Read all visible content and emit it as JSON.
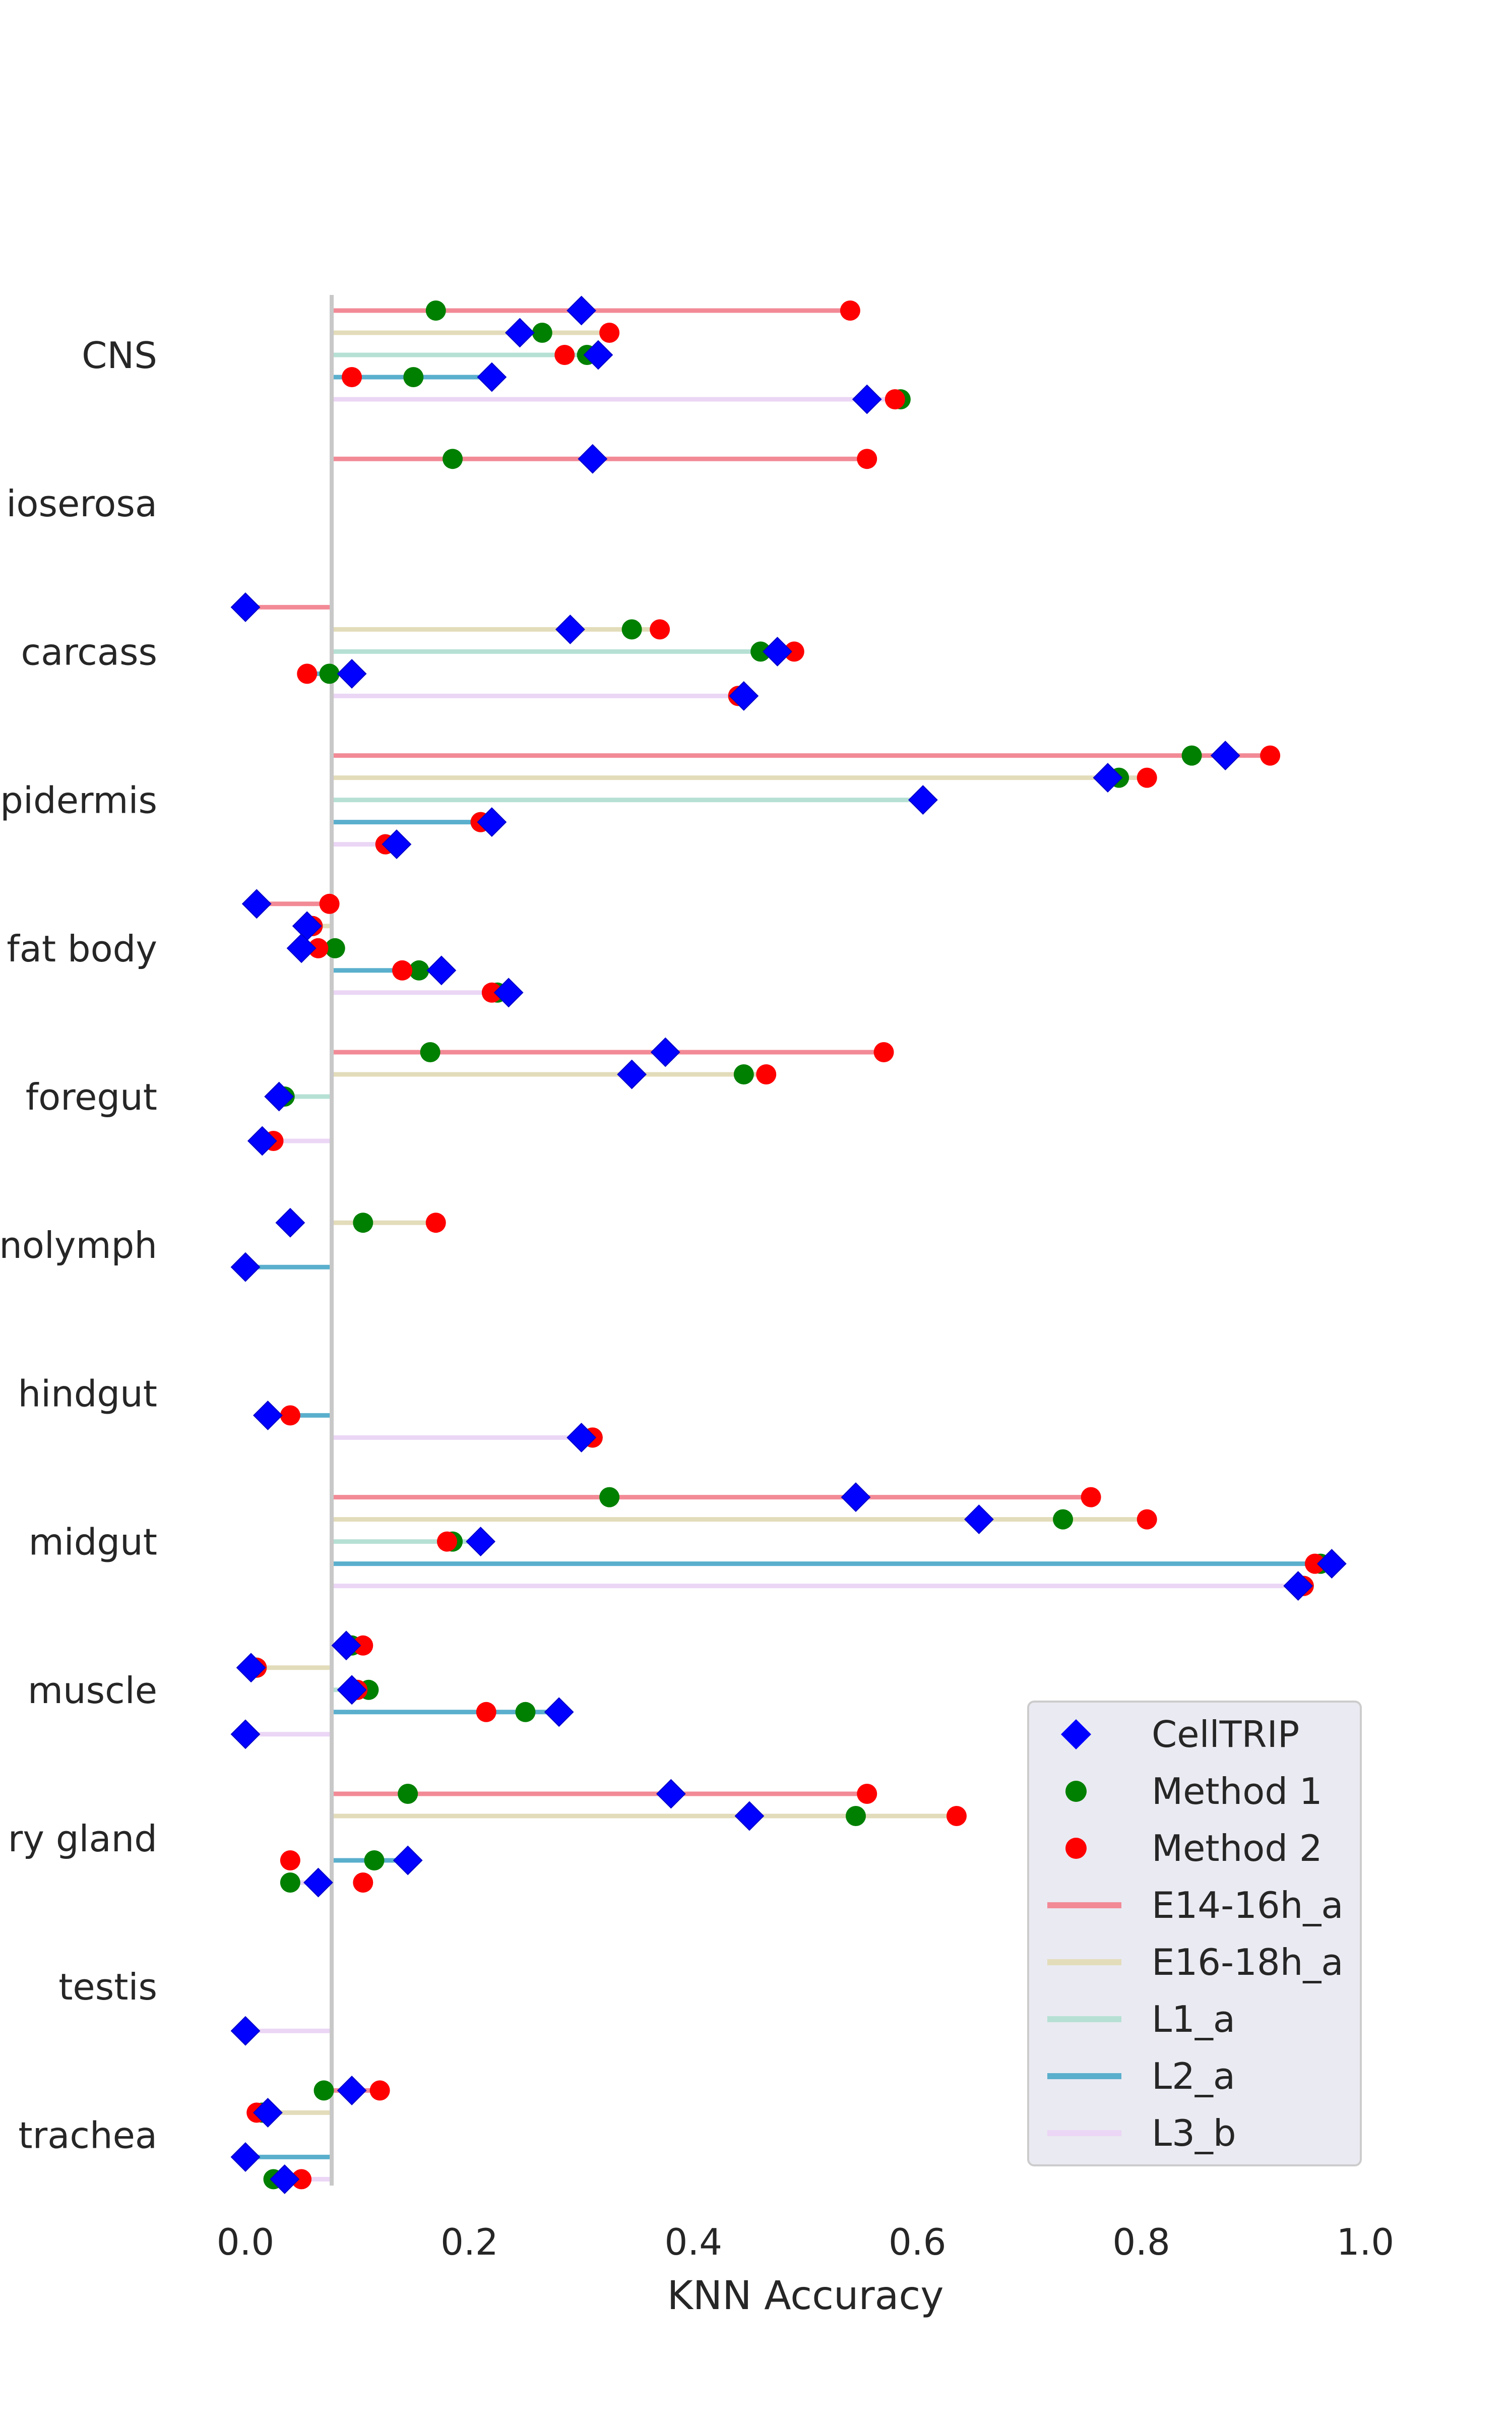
{
  "chart_data": {
    "type": "scatter",
    "xlabel": "KNN Accuracy",
    "xlim": [
      -0.02,
      1.03
    ],
    "x_ticks": [
      "0.0",
      "0.2",
      "0.4",
      "0.6",
      "0.8",
      "1.0"
    ],
    "x_tick_values": [
      0.0,
      0.2,
      0.4,
      0.6,
      0.8,
      1.0
    ],
    "baseline_x": 0.077,
    "grid": false,
    "legend_position": "lower-right",
    "categories": [
      "CNS",
      "amnioserosa",
      "carcass",
      "epidermis",
      "fat body",
      "foregut",
      "hemolymph",
      "hindgut",
      "midgut",
      "muscle",
      "salivary gland",
      "testis",
      "trachea"
    ],
    "category_labels": [
      "CNS",
      "ioserosa",
      "carcass",
      "pidermis",
      "fat body",
      "foregut",
      "nolymph",
      "hindgut",
      "midgut",
      "muscle",
      "ry gland",
      "testis",
      "trachea"
    ],
    "groups": [
      {
        "name": "E14-16h_a",
        "color": "#f28a96"
      },
      {
        "name": "E16-18h_a",
        "color": "#e3dcba"
      },
      {
        "name": "L1_a",
        "color": "#b6e0d4"
      },
      {
        "name": "L2_a",
        "color": "#5aafcd"
      },
      {
        "name": "L3_b",
        "color": "#ebd6f5"
      }
    ],
    "methods": [
      {
        "name": "CellTRIP",
        "color": "#0000ff",
        "marker": "diamond"
      },
      {
        "name": "Method 1",
        "color": "#008000",
        "marker": "circle"
      },
      {
        "name": "Method 2",
        "color": "#ff0000",
        "marker": "circle"
      }
    ],
    "points": [
      {
        "category": "CNS",
        "group": "E14-16h_a",
        "CellTRIP": 0.3,
        "Method 1": 0.17,
        "Method 2": 0.54
      },
      {
        "category": "CNS",
        "group": "E16-18h_a",
        "CellTRIP": 0.245,
        "Method 1": 0.265,
        "Method 2": 0.325
      },
      {
        "category": "CNS",
        "group": "L1_a",
        "CellTRIP": 0.315,
        "Method 1": 0.305,
        "Method 2": 0.285
      },
      {
        "category": "CNS",
        "group": "L2_a",
        "CellTRIP": 0.22,
        "Method 1": 0.15,
        "Method 2": 0.095
      },
      {
        "category": "CNS",
        "group": "L3_b",
        "CellTRIP": 0.555,
        "Method 1": 0.585,
        "Method 2": 0.58
      },
      {
        "category": "amnioserosa",
        "group": "E14-16h_a",
        "CellTRIP": 0.31,
        "Method 1": 0.185,
        "Method 2": 0.555
      },
      {
        "category": "carcass",
        "group": "E14-16h_a",
        "CellTRIP": 0.0,
        "Method 1": null,
        "Method 2": null
      },
      {
        "category": "carcass",
        "group": "E16-18h_a",
        "CellTRIP": 0.29,
        "Method 1": 0.345,
        "Method 2": 0.37
      },
      {
        "category": "carcass",
        "group": "L1_a",
        "CellTRIP": 0.475,
        "Method 1": 0.46,
        "Method 2": 0.49
      },
      {
        "category": "carcass",
        "group": "L2_a",
        "CellTRIP": 0.095,
        "Method 1": 0.075,
        "Method 2": 0.055
      },
      {
        "category": "carcass",
        "group": "L3_b",
        "CellTRIP": 0.445,
        "Method 1": 0.44,
        "Method 2": 0.44
      },
      {
        "category": "epidermis",
        "group": "E14-16h_a",
        "CellTRIP": 0.875,
        "Method 1": 0.845,
        "Method 2": 0.915
      },
      {
        "category": "epidermis",
        "group": "E16-18h_a",
        "CellTRIP": 0.77,
        "Method 1": 0.78,
        "Method 2": 0.805
      },
      {
        "category": "epidermis",
        "group": "L1_a",
        "CellTRIP": 0.605,
        "Method 1": null,
        "Method 2": null
      },
      {
        "category": "epidermis",
        "group": "L2_a",
        "CellTRIP": 0.22,
        "Method 1": 0.21,
        "Method 2": 0.21
      },
      {
        "category": "epidermis",
        "group": "L3_b",
        "CellTRIP": 0.135,
        "Method 1": 0.125,
        "Method 2": 0.125
      },
      {
        "category": "fat body",
        "group": "E14-16h_a",
        "CellTRIP": 0.01,
        "Method 1": null,
        "Method 2": 0.075
      },
      {
        "category": "fat body",
        "group": "E16-18h_a",
        "CellTRIP": 0.055,
        "Method 1": 0.06,
        "Method 2": 0.06
      },
      {
        "category": "fat body",
        "group": "L1_a",
        "CellTRIP": 0.05,
        "Method 1": 0.08,
        "Method 2": 0.065
      },
      {
        "category": "fat body",
        "group": "L2_a",
        "CellTRIP": 0.175,
        "Method 1": 0.155,
        "Method 2": 0.14
      },
      {
        "category": "fat body",
        "group": "L3_b",
        "CellTRIP": 0.235,
        "Method 1": 0.225,
        "Method 2": 0.22
      },
      {
        "category": "foregut",
        "group": "E14-16h_a",
        "CellTRIP": 0.375,
        "Method 1": 0.165,
        "Method 2": 0.57
      },
      {
        "category": "foregut",
        "group": "E16-18h_a",
        "CellTRIP": 0.345,
        "Method 1": 0.445,
        "Method 2": 0.465
      },
      {
        "category": "foregut",
        "group": "L1_a",
        "CellTRIP": 0.03,
        "Method 1": 0.035,
        "Method 2": null
      },
      {
        "category": "foregut",
        "group": "L3_b",
        "CellTRIP": 0.015,
        "Method 1": null,
        "Method 2": 0.025
      },
      {
        "category": "hemolymph",
        "group": "E16-18h_a",
        "CellTRIP": 0.04,
        "Method 1": 0.105,
        "Method 2": 0.17
      },
      {
        "category": "hemolymph",
        "group": "L2_a",
        "CellTRIP": 0.0,
        "Method 1": null,
        "Method 2": null
      },
      {
        "category": "hindgut",
        "group": "L2_a",
        "CellTRIP": 0.02,
        "Method 1": null,
        "Method 2": 0.04
      },
      {
        "category": "hindgut",
        "group": "L3_b",
        "CellTRIP": 0.3,
        "Method 1": 0.31,
        "Method 2": 0.31
      },
      {
        "category": "midgut",
        "group": "E14-16h_a",
        "CellTRIP": 0.545,
        "Method 1": 0.325,
        "Method 2": 0.755
      },
      {
        "category": "midgut",
        "group": "E16-18h_a",
        "CellTRIP": 0.655,
        "Method 1": 0.73,
        "Method 2": 0.805
      },
      {
        "category": "midgut",
        "group": "L1_a",
        "CellTRIP": 0.21,
        "Method 1": 0.185,
        "Method 2": 0.18
      },
      {
        "category": "midgut",
        "group": "L2_a",
        "CellTRIP": 0.97,
        "Method 1": 0.96,
        "Method 2": 0.955
      },
      {
        "category": "midgut",
        "group": "L3_b",
        "CellTRIP": 0.94,
        "Method 1": 0.945,
        "Method 2": 0.945
      },
      {
        "category": "muscle",
        "group": "E14-16h_a",
        "CellTRIP": 0.09,
        "Method 1": 0.095,
        "Method 2": 0.105
      },
      {
        "category": "muscle",
        "group": "E16-18h_a",
        "CellTRIP": 0.005,
        "Method 1": 0.01,
        "Method 2": 0.01
      },
      {
        "category": "muscle",
        "group": "L1_a",
        "CellTRIP": 0.095,
        "Method 1": 0.11,
        "Method 2": 0.1
      },
      {
        "category": "muscle",
        "group": "L2_a",
        "CellTRIP": 0.28,
        "Method 1": 0.25,
        "Method 2": 0.215
      },
      {
        "category": "muscle",
        "group": "L3_b",
        "CellTRIP": 0.0,
        "Method 1": 0.0,
        "Method 2": 0.0
      },
      {
        "category": "salivary gland",
        "group": "E14-16h_a",
        "CellTRIP": 0.38,
        "Method 1": 0.145,
        "Method 2": 0.555
      },
      {
        "category": "salivary gland",
        "group": "E16-18h_a",
        "CellTRIP": 0.45,
        "Method 1": 0.545,
        "Method 2": 0.635
      },
      {
        "category": "salivary gland",
        "group": "L2_a",
        "CellTRIP": 0.145,
        "Method 1": 0.115,
        "Method 2": 0.04
      },
      {
        "category": "salivary gland",
        "group": "L3_b",
        "CellTRIP": 0.065,
        "Method 1": 0.04,
        "Method 2": 0.105
      },
      {
        "category": "testis",
        "group": "L3_b",
        "CellTRIP": 0.0,
        "Method 1": null,
        "Method 2": null
      },
      {
        "category": "trachea",
        "group": "E14-16h_a",
        "CellTRIP": 0.095,
        "Method 1": 0.07,
        "Method 2": 0.12
      },
      {
        "category": "trachea",
        "group": "E16-18h_a",
        "CellTRIP": 0.02,
        "Method 1": 0.015,
        "Method 2": 0.01
      },
      {
        "category": "trachea",
        "group": "L2_a",
        "CellTRIP": 0.0,
        "Method 1": null,
        "Method 2": null
      },
      {
        "category": "trachea",
        "group": "L3_b",
        "CellTRIP": 0.035,
        "Method 1": 0.025,
        "Method 2": 0.05
      }
    ]
  }
}
